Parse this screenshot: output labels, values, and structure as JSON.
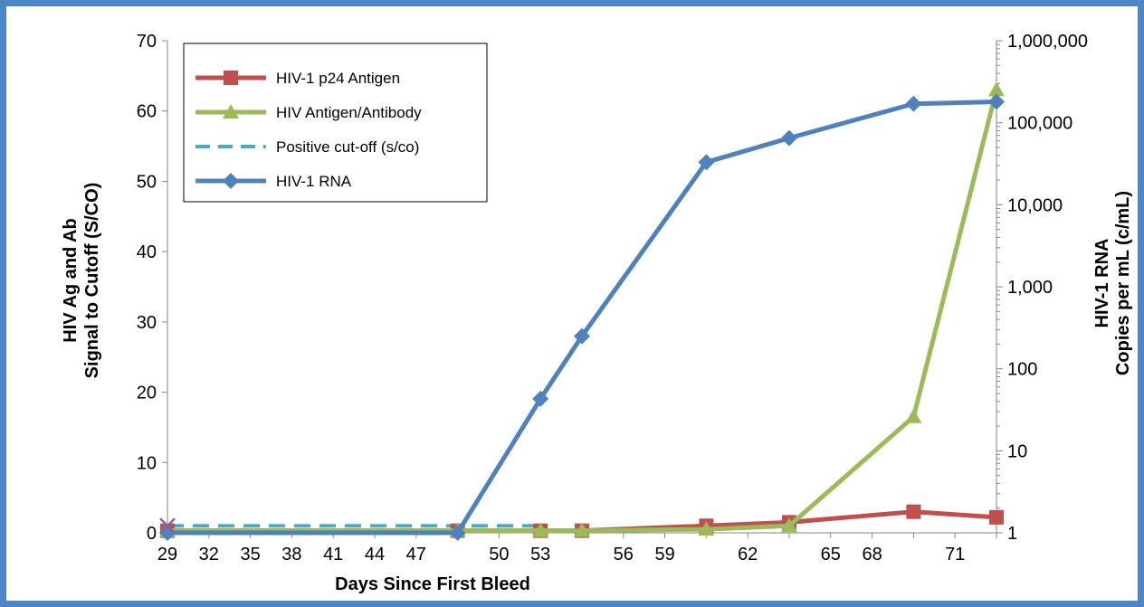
{
  "chart_data": {
    "type": "line",
    "title": "",
    "xlabel": "Days Since First Bleed",
    "ylabel_left": [
      "HIV Ag and Ab",
      "Signal to Cutoff (S/CO)"
    ],
    "ylabel_right": [
      "HIV-1 RNA",
      "Copies per mL (c/mL)"
    ],
    "x_categories": [
      "29",
      "32",
      "35",
      "38",
      "41",
      "44",
      "47",
      "48",
      "50",
      "53",
      "55",
      "56",
      "59",
      "61",
      "62",
      "63",
      "65",
      "68",
      "70",
      "71",
      "72"
    ],
    "x_tick_labels": [
      "29",
      "32",
      "35",
      "38",
      "41",
      "44",
      "47",
      "50",
      "53",
      "56",
      "59",
      "62",
      "65",
      "68",
      "71"
    ],
    "y_left": {
      "min": 0,
      "max": 70,
      "step": 10
    },
    "y_right": {
      "scale": "log",
      "min": 1,
      "max": 1000000,
      "ticks": [
        1,
        10,
        100,
        1000,
        10000,
        100000,
        1000000
      ],
      "tick_labels": [
        "1",
        "10",
        "100",
        "1,000",
        "10,000",
        "100,000",
        "1,000,000"
      ]
    },
    "legend_position": "top-left",
    "series": [
      {
        "name": "HIV-1 p24 Antigen",
        "axis": "left",
        "color": "#c0504d",
        "marker": "square",
        "x": [
          "29",
          "48",
          "53",
          "55",
          "61",
          "63",
          "70",
          "72"
        ],
        "y": [
          0.3,
          0.3,
          0.3,
          0.3,
          1.0,
          1.5,
          3.0,
          2.2
        ]
      },
      {
        "name": "HIV Antigen/Antibody",
        "axis": "left",
        "color": "#9bbb59",
        "marker": "triangle",
        "x": [
          "29",
          "48",
          "53",
          "55",
          "61",
          "63",
          "70",
          "72"
        ],
        "y": [
          0.3,
          0.3,
          0.3,
          0.3,
          0.5,
          1.0,
          16.5,
          63
        ]
      },
      {
        "name": "Positive cut-off (s/co)",
        "axis": "left",
        "color": "#4bacc6",
        "dashed": true,
        "x": [
          "29",
          "53"
        ],
        "y": [
          1,
          1
        ]
      },
      {
        "name": "HIV-1 RNA",
        "axis": "right",
        "color": "#4f81bd",
        "marker": "diamond",
        "x": [
          "29",
          "48",
          "53",
          "55",
          "61",
          "63",
          "70",
          "72"
        ],
        "y": [
          1,
          1,
          43,
          250,
          33000,
          65000,
          170000,
          180000
        ]
      }
    ],
    "extra_markers": [
      {
        "x": "29",
        "y": 1,
        "axis": "left",
        "symbol": "cross",
        "color": "#8064a2"
      }
    ]
  }
}
